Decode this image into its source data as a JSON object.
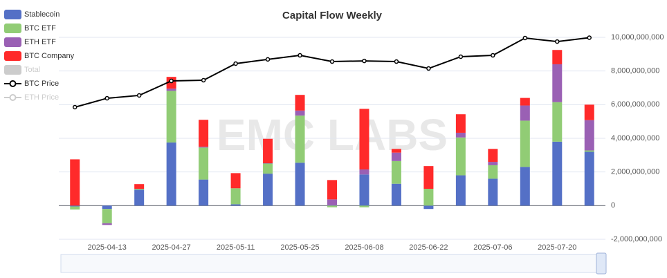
{
  "chart_data": {
    "type": "bar",
    "stacked": true,
    "title": "Capital Flow Weekly",
    "watermark": "EMC LABS",
    "categories": [
      null,
      "2025-04-13",
      null,
      "2025-04-27",
      null,
      "2025-05-11",
      null,
      "2025-05-25",
      null,
      "2025-06-08",
      null,
      "2025-06-22",
      null,
      "2025-07-06",
      null,
      "2025-07-20",
      null
    ],
    "series": [
      {
        "name": "Stablecoin",
        "type": "bar",
        "color": "#5470c6",
        "values": [
          -50000000,
          -200000000,
          950000000,
          3750000000,
          1550000000,
          80000000,
          1900000000,
          2550000000,
          20000000,
          1850000000,
          1300000000,
          -200000000,
          1800000000,
          1600000000,
          2300000000,
          3800000000,
          3200000000
        ]
      },
      {
        "name": "BTC ETF",
        "type": "bar",
        "color": "#91cc75",
        "values": [
          -180000000,
          -850000000,
          50000000,
          3070000000,
          1900000000,
          950000000,
          600000000,
          2800000000,
          -100000000,
          -100000000,
          1350000000,
          1000000000,
          2250000000,
          800000000,
          2750000000,
          2350000000,
          80000000
        ]
      },
      {
        "name": "ETH ETF",
        "type": "bar",
        "color": "#9a60b4",
        "values": [
          0,
          -100000000,
          0,
          130000000,
          50000000,
          0,
          20000000,
          300000000,
          350000000,
          300000000,
          500000000,
          0,
          280000000,
          200000000,
          900000000,
          2250000000,
          1800000000
        ]
      },
      {
        "name": "BTC Company",
        "type": "bar",
        "color": "#ff2a2a",
        "values": [
          2750000000,
          0,
          280000000,
          700000000,
          1600000000,
          900000000,
          1450000000,
          930000000,
          1150000000,
          3600000000,
          220000000,
          1350000000,
          1100000000,
          770000000,
          450000000,
          850000000,
          920000000
        ]
      },
      {
        "name": "Total",
        "type": "bar",
        "visible": false
      },
      {
        "name": "BTC Price",
        "type": "line",
        "axis": "y2",
        "color": "#000000",
        "values": [
          78500,
          83800,
          85500,
          94100,
          94500,
          104400,
          106900,
          109300,
          105600,
          106000,
          105600,
          101500,
          108500,
          109300,
          119600,
          117500,
          119800
        ]
      },
      {
        "name": "ETH Price",
        "type": "line",
        "axis": "y2",
        "visible": false
      }
    ],
    "ylim": [
      -2000000000,
      10000000000
    ],
    "yticks": [
      {
        "value": -2000000000,
        "label": "-2,000,000,000"
      },
      0,
      {
        "value": 2000000000,
        "label": "2,000,000,000"
      },
      {
        "value": 4000000000,
        "label": "4,000,000,000"
      },
      {
        "value": 6000000000,
        "label": "6,000,000,000"
      },
      {
        "value": 8000000000,
        "label": "8,000,000,000"
      },
      {
        "value": 10000000000,
        "label": "10,000,000,000"
      }
    ],
    "y2lim": [
      0,
      120000
    ],
    "grid": true
  }
}
